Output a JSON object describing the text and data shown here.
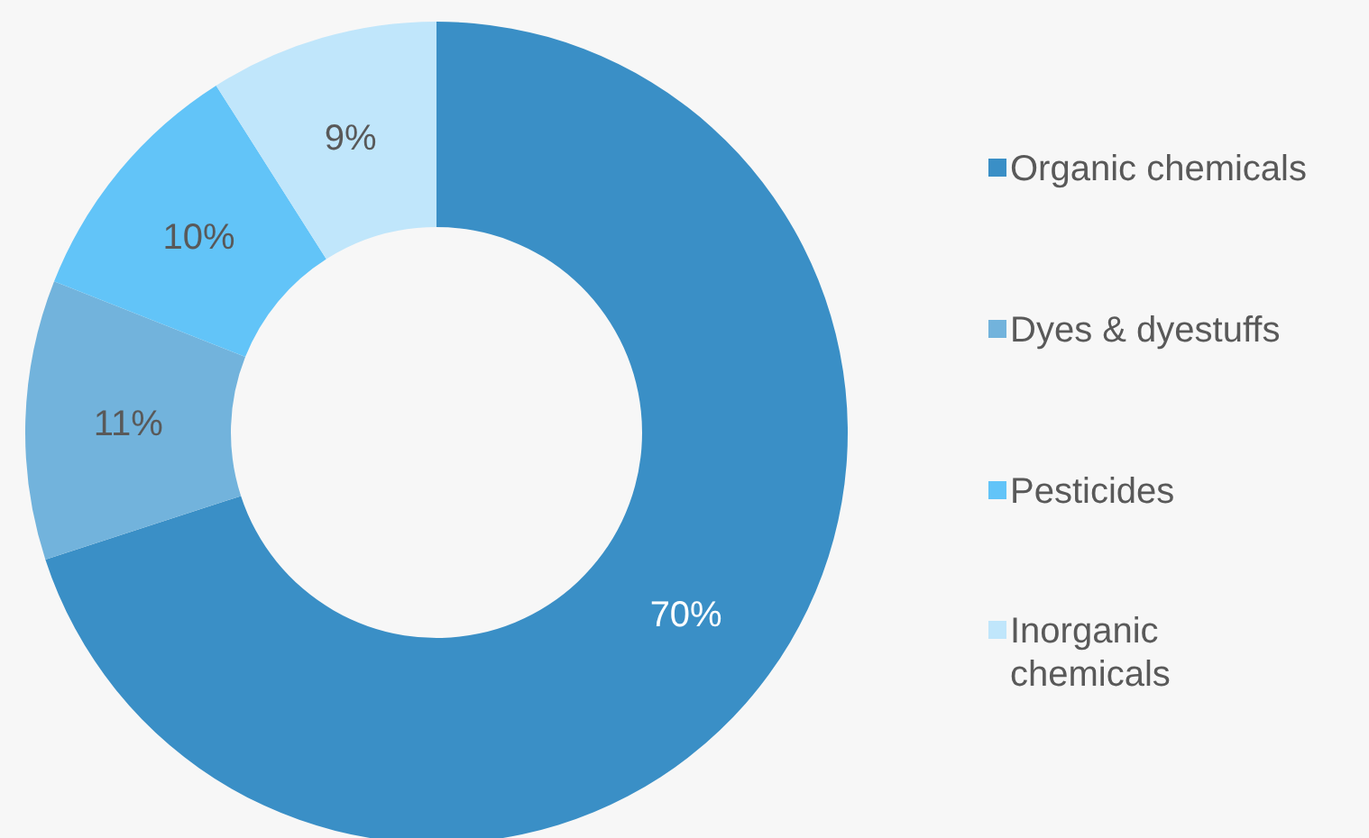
{
  "chart_data": {
    "type": "donut",
    "categories": [
      "Organic chemicals",
      "Dyes & dyestuffs",
      "Pesticides",
      "Inorganic chemicals"
    ],
    "values": [
      70,
      11,
      10,
      9
    ],
    "colors": [
      "#3a8fc6",
      "#72b3dc",
      "#62c4f8",
      "#c0e6fb"
    ],
    "value_labels": [
      "70%",
      "11%",
      "10%",
      "9%"
    ],
    "legend": "right"
  }
}
